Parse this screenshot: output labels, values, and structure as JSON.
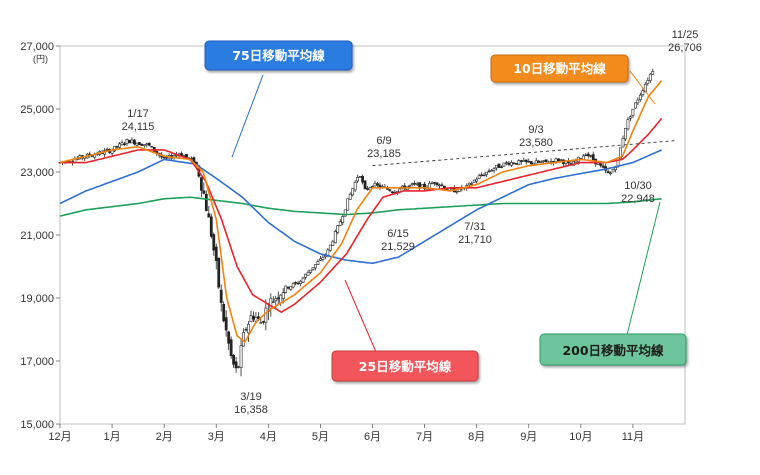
{
  "chart_data": {
    "type": "candlestick",
    "unit_label": "(円)",
    "ylim": [
      15000,
      27000
    ],
    "y_ticks": [
      "15,000",
      "17,000",
      "19,000",
      "21,000",
      "23,000",
      "25,000",
      "27,000"
    ],
    "x_ticks": [
      "12月",
      "1月",
      "2月",
      "3月",
      "4月",
      "5月",
      "6月",
      "7月",
      "8月",
      "9月",
      "10月",
      "11月"
    ],
    "colors": {
      "candle": "#222222",
      "ma10": "#f0820f",
      "ma25": "#e8242c",
      "ma75": "#2f6fd0",
      "ma200": "#1fa05a",
      "label75_fill": "#2b7be0",
      "label10_fill": "#f28a1c",
      "label25_fill": "#f2565a",
      "label200_fill": "#6cc49a"
    },
    "legend_labels": {
      "ma75": "75日移動平均線",
      "ma10": "10日移動平均線",
      "ma25": "25日移動平均線",
      "ma200": "200日移動平均線"
    },
    "annotations": [
      {
        "date": "1/17",
        "value": "24,115"
      },
      {
        "date": "6/9",
        "value": "23,185"
      },
      {
        "date": "9/3",
        "value": "23,580"
      },
      {
        "date": "6/15",
        "value": "21,529"
      },
      {
        "date": "7/31",
        "value": "21,710"
      },
      {
        "date": "10/30",
        "value": "22,948"
      },
      {
        "date": "3/19",
        "value": "16,358"
      },
      {
        "date": "11/25",
        "value": "26,706"
      }
    ],
    "series_keypoints": {
      "close": [
        [
          0,
          23300
        ],
        [
          0.5,
          23500
        ],
        [
          1,
          23700
        ],
        [
          1.3,
          24000
        ],
        [
          1.7,
          23850
        ],
        [
          2,
          23400
        ],
        [
          2.3,
          23600
        ],
        [
          2.6,
          23300
        ],
        [
          2.75,
          22400
        ],
        [
          2.9,
          21100
        ],
        [
          3.0,
          20000
        ],
        [
          3.1,
          18700
        ],
        [
          3.3,
          17000
        ],
        [
          3.4,
          16600
        ],
        [
          3.55,
          18000
        ],
        [
          3.7,
          18500
        ],
        [
          3.85,
          18200
        ],
        [
          4,
          18800
        ],
        [
          4.3,
          19300
        ],
        [
          4.6,
          19500
        ],
        [
          4.8,
          19900
        ],
        [
          5,
          20200
        ],
        [
          5.15,
          20500
        ],
        [
          5.35,
          21300
        ],
        [
          5.55,
          22200
        ],
        [
          5.75,
          23000
        ],
        [
          5.85,
          22400
        ],
        [
          6,
          22600
        ],
        [
          6.4,
          22400
        ],
        [
          6.8,
          22600
        ],
        [
          7,
          22500
        ],
        [
          7.2,
          22700
        ],
        [
          7.5,
          22400
        ],
        [
          7.8,
          22500
        ],
        [
          8,
          22800
        ],
        [
          8.3,
          23100
        ],
        [
          8.6,
          23300
        ],
        [
          9,
          23300
        ],
        [
          9.3,
          23300
        ],
        [
          9.6,
          23400
        ],
        [
          9.8,
          23200
        ],
        [
          10.1,
          23600
        ],
        [
          10.3,
          23300
        ],
        [
          10.55,
          22900
        ],
        [
          10.7,
          23300
        ],
        [
          10.85,
          24400
        ],
        [
          11,
          25000
        ],
        [
          11.15,
          25500
        ],
        [
          11.3,
          26000
        ],
        [
          11.4,
          26300
        ]
      ],
      "ma10": [
        [
          0,
          23300
        ],
        [
          0.5,
          23500
        ],
        [
          1,
          23700
        ],
        [
          1.5,
          23800
        ],
        [
          2,
          23500
        ],
        [
          2.5,
          23400
        ],
        [
          2.75,
          23000
        ],
        [
          3.0,
          21500
        ],
        [
          3.2,
          19000
        ],
        [
          3.4,
          17800
        ],
        [
          3.55,
          17600
        ],
        [
          3.75,
          18200
        ],
        [
          4,
          18600
        ],
        [
          4.5,
          19100
        ],
        [
          5,
          19800
        ],
        [
          5.4,
          20700
        ],
        [
          5.7,
          21800
        ],
        [
          6,
          22500
        ],
        [
          6.5,
          22500
        ],
        [
          7,
          22500
        ],
        [
          7.5,
          22400
        ],
        [
          8,
          22600
        ],
        [
          8.5,
          23000
        ],
        [
          9,
          23200
        ],
        [
          9.5,
          23300
        ],
        [
          10,
          23400
        ],
        [
          10.5,
          23300
        ],
        [
          10.8,
          23500
        ],
        [
          11,
          24300
        ],
        [
          11.3,
          25400
        ],
        [
          11.55,
          25900
        ]
      ],
      "ma25": [
        [
          0,
          23300
        ],
        [
          0.5,
          23300
        ],
        [
          1,
          23500
        ],
        [
          1.5,
          23700
        ],
        [
          2,
          23700
        ],
        [
          2.5,
          23400
        ],
        [
          2.8,
          22700
        ],
        [
          3.1,
          21500
        ],
        [
          3.4,
          20000
        ],
        [
          3.7,
          19100
        ],
        [
          4.0,
          18800
        ],
        [
          4.25,
          18550
        ],
        [
          4.5,
          18800
        ],
        [
          5,
          19500
        ],
        [
          5.5,
          20400
        ],
        [
          5.9,
          21500
        ],
        [
          6.2,
          22200
        ],
        [
          6.6,
          22400
        ],
        [
          7,
          22400
        ],
        [
          7.5,
          22500
        ],
        [
          8,
          22500
        ],
        [
          8.5,
          22700
        ],
        [
          9,
          22900
        ],
        [
          9.5,
          23100
        ],
        [
          10,
          23300
        ],
        [
          10.5,
          23300
        ],
        [
          10.8,
          23400
        ],
        [
          11,
          23700
        ],
        [
          11.3,
          24200
        ],
        [
          11.55,
          24700
        ]
      ],
      "ma75": [
        [
          0,
          22000
        ],
        [
          0.5,
          22400
        ],
        [
          1,
          22700
        ],
        [
          1.5,
          23000
        ],
        [
          2,
          23400
        ],
        [
          2.6,
          23250
        ],
        [
          3,
          22800
        ],
        [
          3.5,
          22200
        ],
        [
          4,
          21400
        ],
        [
          4.5,
          20800
        ],
        [
          5,
          20400
        ],
        [
          5.5,
          20200
        ],
        [
          6,
          20100
        ],
        [
          6.5,
          20300
        ],
        [
          7,
          20800
        ],
        [
          7.5,
          21300
        ],
        [
          8,
          21800
        ],
        [
          8.5,
          22200
        ],
        [
          9,
          22600
        ],
        [
          9.5,
          22800
        ],
        [
          10,
          22950
        ],
        [
          10.5,
          23100
        ],
        [
          11,
          23300
        ],
        [
          11.55,
          23700
        ]
      ],
      "ma200": [
        [
          0,
          21600
        ],
        [
          0.5,
          21800
        ],
        [
          1,
          21900
        ],
        [
          1.5,
          22000
        ],
        [
          2,
          22150
        ],
        [
          2.5,
          22200
        ],
        [
          3,
          22100
        ],
        [
          3.5,
          22000
        ],
        [
          4,
          21850
        ],
        [
          4.5,
          21750
        ],
        [
          5,
          21700
        ],
        [
          5.5,
          21650
        ],
        [
          6,
          21700
        ],
        [
          6.5,
          21800
        ],
        [
          7,
          21850
        ],
        [
          7.5,
          21900
        ],
        [
          8,
          21950
        ],
        [
          8.5,
          22000
        ],
        [
          9,
          22000
        ],
        [
          9.5,
          22000
        ],
        [
          10,
          22000
        ],
        [
          10.5,
          22000
        ],
        [
          11,
          22050
        ],
        [
          11.55,
          22150
        ]
      ],
      "resistance_line": [
        [
          6.0,
          23200
        ],
        [
          11.85,
          24000
        ]
      ]
    }
  }
}
